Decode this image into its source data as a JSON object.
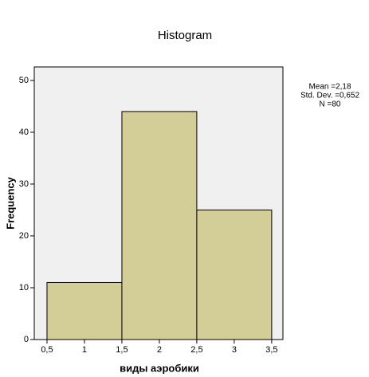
{
  "chart_data": {
    "type": "histogram",
    "title": "Histogram",
    "x_label": "виды аэробики",
    "y_label": "Frequency",
    "bins": [
      0.5,
      1.5,
      2.5,
      3.5
    ],
    "values": [
      11,
      44,
      25
    ],
    "color": "#d3ce97",
    "xlim": [
      0.33,
      3.65
    ],
    "ylim": [
      0,
      52.6
    ],
    "xticks": [
      {
        "value": 0.5,
        "label": "0,5"
      },
      1,
      {
        "value": 1.5,
        "label": "1,5"
      },
      2,
      {
        "value": 2.5,
        "label": "2,5"
      },
      3,
      {
        "value": 3.5,
        "label": "3,5"
      }
    ],
    "yticks": [
      0,
      10,
      20,
      30,
      40,
      50
    ],
    "annotations": [
      "Mean =2,18",
      "Std. Dev. =0,652",
      "N =80"
    ]
  }
}
